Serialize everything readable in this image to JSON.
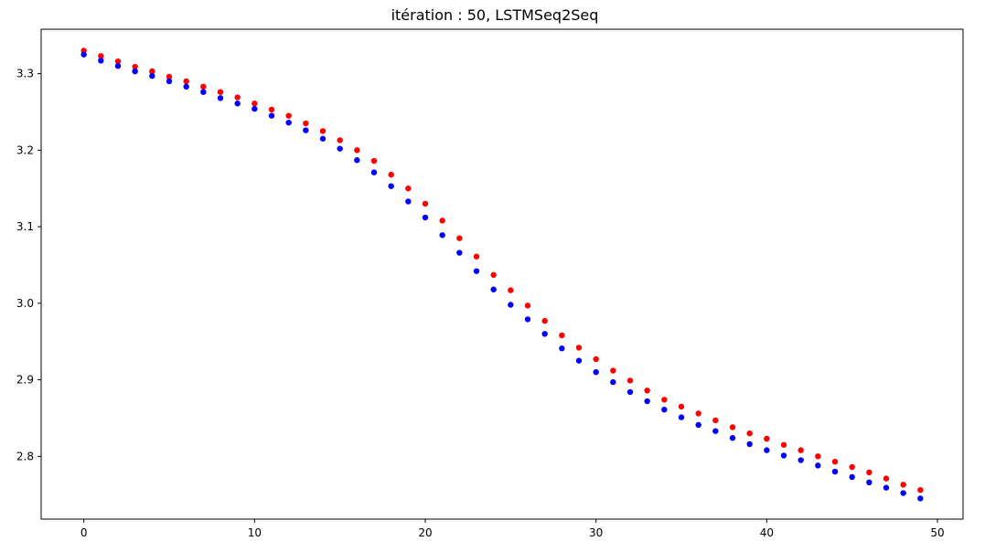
{
  "chart_data": {
    "type": "scatter",
    "title": "itération : 50, LSTMSeq2Seq",
    "xlabel": "",
    "ylabel": "",
    "xlim": [
      -2.5,
      51.5
    ],
    "ylim": [
      2.718,
      3.358
    ],
    "x_ticks": [
      0,
      10,
      20,
      30,
      40,
      50
    ],
    "y_ticks": [
      2.8,
      2.9,
      3.0,
      3.1,
      3.2,
      3.3
    ],
    "x_tick_labels": [
      "0",
      "10",
      "20",
      "30",
      "40",
      "50"
    ],
    "y_tick_labels": [
      "2.8",
      "2.9",
      "3.0",
      "3.1",
      "3.2",
      "3.3"
    ],
    "grid": false,
    "legend": "none",
    "x": [
      0,
      1,
      2,
      3,
      4,
      5,
      6,
      7,
      8,
      9,
      10,
      11,
      12,
      13,
      14,
      15,
      16,
      17,
      18,
      19,
      20,
      21,
      22,
      23,
      24,
      25,
      26,
      27,
      28,
      29,
      30,
      31,
      32,
      33,
      34,
      35,
      36,
      37,
      38,
      39,
      40,
      41,
      42,
      43,
      44,
      45,
      46,
      47,
      48,
      49
    ],
    "series": [
      {
        "color": "#ff0000",
        "values": [
          3.33,
          3.323,
          3.316,
          3.309,
          3.303,
          3.296,
          3.29,
          3.283,
          3.276,
          3.269,
          3.261,
          3.253,
          3.245,
          3.235,
          3.225,
          3.213,
          3.2,
          3.186,
          3.168,
          3.15,
          3.13,
          3.108,
          3.085,
          3.061,
          3.037,
          3.017,
          2.997,
          2.977,
          2.958,
          2.942,
          2.927,
          2.912,
          2.899,
          2.886,
          2.874,
          2.865,
          2.856,
          2.847,
          2.838,
          2.83,
          2.823,
          2.815,
          2.808,
          2.8,
          2.793,
          2.786,
          2.779,
          2.771,
          2.763,
          2.756
        ]
      },
      {
        "color": "#0000ff",
        "values": [
          3.325,
          3.317,
          3.31,
          3.303,
          3.297,
          3.29,
          3.283,
          3.276,
          3.268,
          3.261,
          3.254,
          3.245,
          3.236,
          3.226,
          3.215,
          3.202,
          3.187,
          3.171,
          3.153,
          3.133,
          3.112,
          3.089,
          3.066,
          3.042,
          3.018,
          2.998,
          2.979,
          2.96,
          2.941,
          2.925,
          2.91,
          2.897,
          2.884,
          2.872,
          2.861,
          2.851,
          2.841,
          2.833,
          2.824,
          2.816,
          2.808,
          2.801,
          2.795,
          2.788,
          2.78,
          2.773,
          2.766,
          2.759,
          2.752,
          2.745
        ]
      }
    ]
  }
}
